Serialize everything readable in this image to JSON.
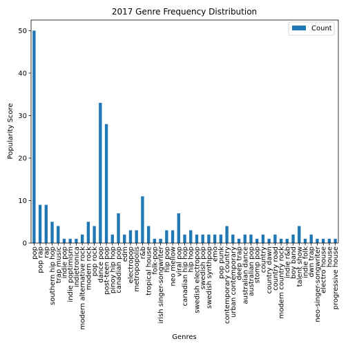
{
  "chart_data": {
    "type": "bar",
    "title": "2017 Genre Frequency Distribution",
    "xlabel": "Genres",
    "ylabel": "Popularity Score",
    "ylim": [
      0,
      52.5
    ],
    "yticks": [
      "0",
      "10",
      "20",
      "30",
      "40",
      "50"
    ],
    "legend_position": "top-right",
    "grid": false,
    "bar_color": "#1f77b4",
    "categories": [
      "pop",
      "pop rap",
      "rap",
      "southern hip hop",
      "trap music",
      "indie pop",
      "indie poptimism",
      "indietronica",
      "modern alternative rock",
      "modern rock",
      "pop rock",
      "dance pop",
      "post-teen pop",
      "pinoy hip hop",
      "canadian pop",
      "edm",
      "electropop",
      "metropopolis",
      "r&b",
      "tropical house",
      "folk-pop",
      "irish singer-songwriter",
      "hip pop",
      "neo mellow",
      "viral pop",
      "canadian hip hop",
      "hip hop",
      "swedish electropop",
      "swedish pop",
      "swedish synthpop",
      "emo",
      "pop punk",
      "contemporary country",
      "urban contemporary",
      "deep trap",
      "australian dance",
      "australian pop",
      "stomp pop",
      "country",
      "country dawn",
      "country road",
      "modern country rock",
      "indie r&b",
      "boy band",
      "talent show",
      "indie folk",
      "dwn trap",
      "neo-singer-songwriter",
      "electro house",
      "house",
      "progressive house"
    ],
    "series": [
      {
        "name": "Count",
        "values": [
          50,
          9,
          9,
          5,
          4,
          1,
          1,
          1,
          2,
          5,
          4,
          33,
          28,
          2,
          7,
          2,
          3,
          3,
          11,
          4,
          1,
          1,
          3,
          3,
          7,
          2,
          3,
          2,
          2,
          2,
          2,
          2,
          4,
          2,
          1,
          2,
          2,
          1,
          2,
          1,
          2,
          1,
          1,
          2,
          4,
          1,
          2,
          1,
          1,
          1,
          1
        ]
      }
    ]
  }
}
